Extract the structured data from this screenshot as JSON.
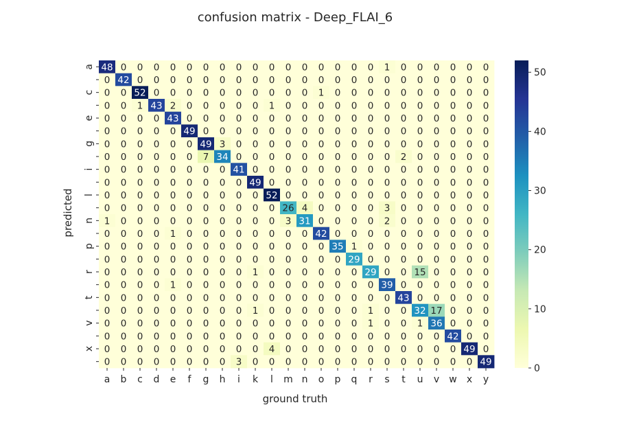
{
  "chart_data": {
    "type": "heatmap",
    "title": "confusion matrix - Deep_FLAI_6",
    "xlabel": "ground truth",
    "ylabel": "predicted",
    "x_tick_labels": [
      "a",
      "b",
      "c",
      "d",
      "e",
      "f",
      "g",
      "h",
      "i",
      "k",
      "l",
      "m",
      "n",
      "o",
      "p",
      "q",
      "r",
      "s",
      "t",
      "u",
      "v",
      "w",
      "x",
      "y"
    ],
    "y_tick_labels": [
      "a",
      "",
      "c",
      "",
      "e",
      "",
      "g",
      "",
      "i",
      "",
      "l",
      "",
      "n",
      "",
      "p",
      "",
      "r",
      "",
      "t",
      "",
      "v",
      "",
      "x",
      ""
    ],
    "matrix": [
      [
        48,
        0,
        0,
        0,
        0,
        0,
        0,
        0,
        0,
        0,
        0,
        0,
        0,
        0,
        0,
        0,
        0,
        1,
        0,
        0,
        0,
        0,
        0,
        0
      ],
      [
        0,
        42,
        0,
        0,
        0,
        0,
        0,
        0,
        0,
        0,
        0,
        0,
        0,
        0,
        0,
        0,
        0,
        0,
        0,
        0,
        0,
        0,
        0,
        0
      ],
      [
        0,
        0,
        52,
        0,
        0,
        0,
        0,
        0,
        0,
        0,
        0,
        0,
        0,
        1,
        0,
        0,
        0,
        0,
        0,
        0,
        0,
        0,
        0,
        0
      ],
      [
        0,
        0,
        1,
        43,
        2,
        0,
        0,
        0,
        0,
        0,
        1,
        0,
        0,
        0,
        0,
        0,
        0,
        0,
        0,
        0,
        0,
        0,
        0,
        0
      ],
      [
        0,
        0,
        0,
        0,
        43,
        0,
        0,
        0,
        0,
        0,
        0,
        0,
        0,
        0,
        0,
        0,
        0,
        0,
        0,
        0,
        0,
        0,
        0,
        0
      ],
      [
        0,
        0,
        0,
        0,
        0,
        49,
        0,
        0,
        0,
        0,
        0,
        0,
        0,
        0,
        0,
        0,
        0,
        0,
        0,
        0,
        0,
        0,
        0,
        0
      ],
      [
        0,
        0,
        0,
        0,
        0,
        0,
        49,
        3,
        0,
        0,
        0,
        0,
        0,
        0,
        0,
        0,
        0,
        0,
        0,
        0,
        0,
        0,
        0,
        0
      ],
      [
        0,
        0,
        0,
        0,
        0,
        0,
        7,
        34,
        0,
        0,
        0,
        0,
        0,
        0,
        0,
        0,
        0,
        0,
        2,
        0,
        0,
        0,
        0,
        0
      ],
      [
        0,
        0,
        0,
        0,
        0,
        0,
        0,
        0,
        41,
        0,
        0,
        0,
        0,
        0,
        0,
        0,
        0,
        0,
        0,
        0,
        0,
        0,
        0,
        0
      ],
      [
        0,
        0,
        0,
        0,
        0,
        0,
        0,
        0,
        0,
        49,
        0,
        0,
        0,
        0,
        0,
        0,
        0,
        0,
        0,
        0,
        0,
        0,
        0,
        0
      ],
      [
        0,
        0,
        0,
        0,
        0,
        0,
        0,
        0,
        0,
        0,
        52,
        0,
        0,
        0,
        0,
        0,
        0,
        0,
        0,
        0,
        0,
        0,
        0,
        0
      ],
      [
        0,
        0,
        0,
        0,
        0,
        0,
        0,
        0,
        0,
        0,
        0,
        26,
        4,
        0,
        0,
        0,
        0,
        3,
        0,
        0,
        0,
        0,
        0,
        0
      ],
      [
        1,
        0,
        0,
        0,
        0,
        0,
        0,
        0,
        0,
        0,
        0,
        3,
        31,
        0,
        0,
        0,
        0,
        2,
        0,
        0,
        0,
        0,
        0,
        0
      ],
      [
        0,
        0,
        0,
        0,
        1,
        0,
        0,
        0,
        0,
        0,
        0,
        0,
        0,
        42,
        0,
        0,
        0,
        0,
        0,
        0,
        0,
        0,
        0,
        0
      ],
      [
        0,
        0,
        0,
        0,
        0,
        0,
        0,
        0,
        0,
        0,
        0,
        0,
        0,
        0,
        35,
        1,
        0,
        0,
        0,
        0,
        0,
        0,
        0,
        0
      ],
      [
        0,
        0,
        0,
        0,
        0,
        0,
        0,
        0,
        0,
        0,
        0,
        0,
        0,
        0,
        0,
        29,
        0,
        0,
        0,
        0,
        0,
        0,
        0,
        0
      ],
      [
        0,
        0,
        0,
        0,
        0,
        0,
        0,
        0,
        0,
        1,
        0,
        0,
        0,
        0,
        0,
        0,
        29,
        0,
        0,
        15,
        0,
        0,
        0,
        0
      ],
      [
        0,
        0,
        0,
        0,
        1,
        0,
        0,
        0,
        0,
        0,
        0,
        0,
        0,
        0,
        0,
        0,
        0,
        39,
        0,
        0,
        0,
        0,
        0,
        0
      ],
      [
        0,
        0,
        0,
        0,
        0,
        0,
        0,
        0,
        0,
        0,
        0,
        0,
        0,
        0,
        0,
        0,
        0,
        0,
        43,
        0,
        0,
        0,
        0,
        0
      ],
      [
        0,
        0,
        0,
        0,
        0,
        0,
        0,
        0,
        0,
        1,
        0,
        0,
        0,
        0,
        0,
        0,
        1,
        0,
        0,
        32,
        17,
        0,
        0,
        0
      ],
      [
        0,
        0,
        0,
        0,
        0,
        0,
        0,
        0,
        0,
        0,
        0,
        0,
        0,
        0,
        0,
        0,
        1,
        0,
        0,
        1,
        36,
        0,
        0,
        0
      ],
      [
        0,
        0,
        0,
        0,
        0,
        0,
        0,
        0,
        0,
        0,
        0,
        0,
        0,
        0,
        0,
        0,
        0,
        0,
        0,
        0,
        0,
        42,
        0,
        0
      ],
      [
        0,
        0,
        0,
        0,
        0,
        0,
        0,
        0,
        0,
        0,
        4,
        0,
        0,
        0,
        0,
        0,
        0,
        0,
        0,
        0,
        0,
        0,
        49,
        0
      ],
      [
        0,
        0,
        0,
        0,
        0,
        0,
        0,
        0,
        3,
        0,
        0,
        0,
        0,
        0,
        0,
        0,
        0,
        0,
        0,
        0,
        0,
        0,
        0,
        49
      ]
    ],
    "vmin": 0,
    "vmax": 52,
    "colormap": "YlGnBu",
    "colormap_stops": [
      "#ffffd9",
      "#edf8b1",
      "#c7e9b4",
      "#7fcdbb",
      "#41b6c4",
      "#1d91c0",
      "#225ea8",
      "#253494",
      "#081d58"
    ],
    "colorbar_ticks": [
      0,
      10,
      20,
      30,
      40,
      50
    ],
    "annotations": true,
    "grid": false
  }
}
